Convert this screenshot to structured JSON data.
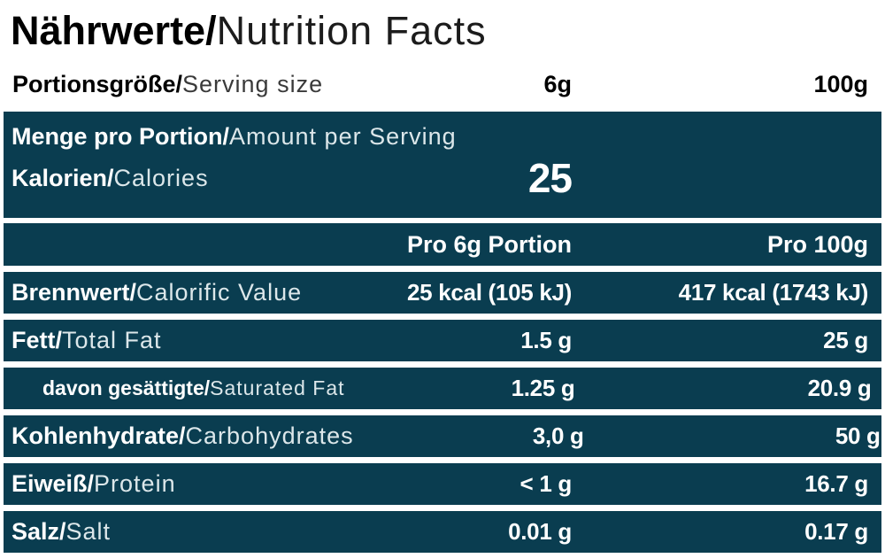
{
  "colors": {
    "band_teal": "#0a3d50",
    "background": "#ffffff",
    "text_dark": "#000000",
    "text_light_on_band": "#dce7ea"
  },
  "title": {
    "de": "Nährwerte/",
    "en": "Nutrition Facts"
  },
  "serving": {
    "label_de": "Portionsgröße/",
    "label_en": "Serving size",
    "per_serving": "6g",
    "per_100g": "100g"
  },
  "amount_band": {
    "line1_de": "Menge pro Portion/",
    "line1_en": "Amount per Serving",
    "calories_de": "Kalorien/",
    "calories_en": "Calories",
    "calories_value": "25"
  },
  "column_headers": {
    "col2": "Pro 6g Portion",
    "col3": "Pro 100g"
  },
  "rows": [
    {
      "de": "Brennwert/",
      "en": "Calorific Value",
      "col2": "25 kcal (105 kJ)",
      "col3": "417 kcal (1743 kJ)",
      "indent": false
    },
    {
      "de": "Fett/",
      "en": "Total Fat",
      "col2": "1.5 g",
      "col3": "25 g",
      "indent": false
    },
    {
      "de": "davon gesättigte/",
      "en": "Saturated Fat",
      "col2": "1.25 g",
      "col3": "20.9 g",
      "indent": true
    },
    {
      "de": "Kohlenhydrate/",
      "en": "Carbohydrates",
      "col2": "3,0 g",
      "col3": "50 g",
      "indent": false
    },
    {
      "de": "Eiweiß/",
      "en": "Protein",
      "col2": "< 1 g",
      "col3": "16.7 g",
      "indent": false
    },
    {
      "de": "Salz/",
      "en": "Salt",
      "col2": "0.01 g",
      "col3": "0.17 g",
      "indent": false
    }
  ]
}
